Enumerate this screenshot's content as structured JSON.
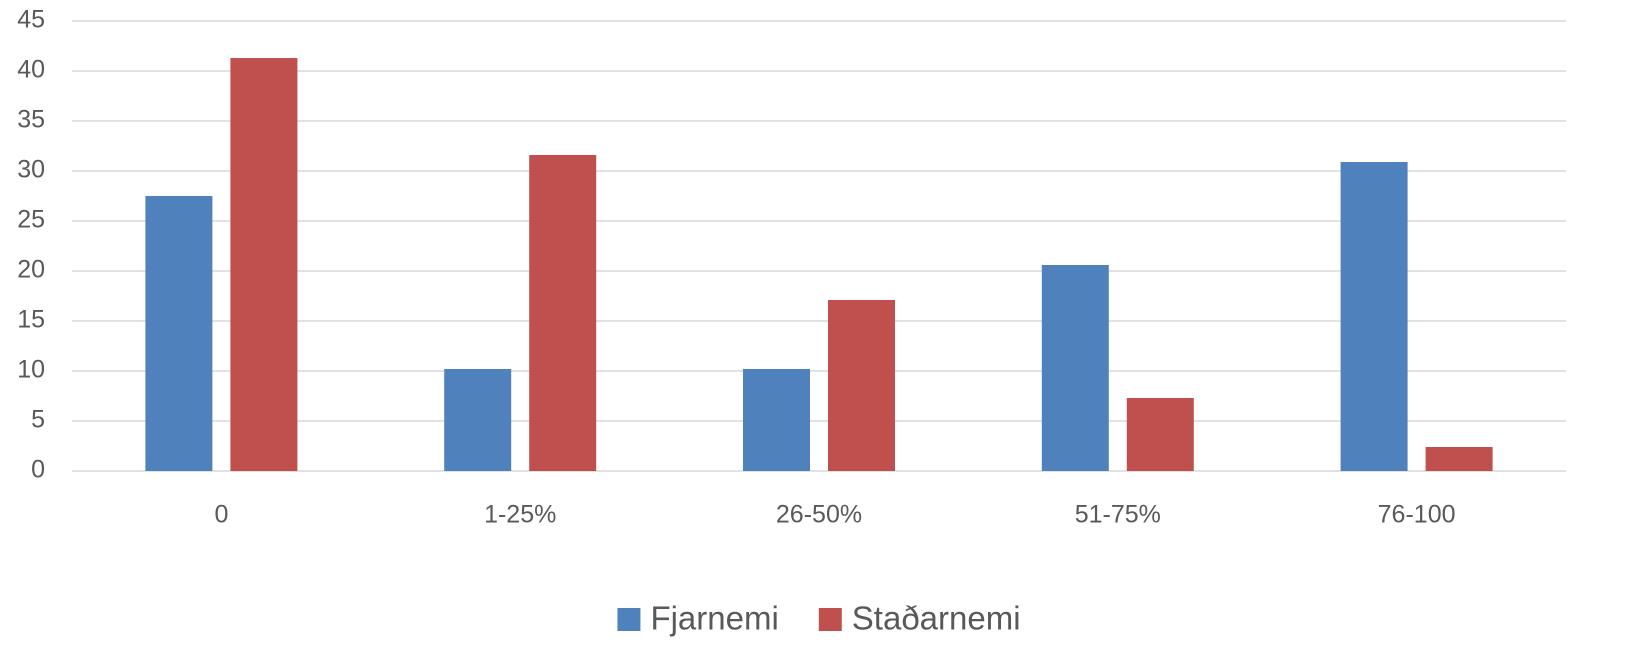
{
  "chart_data": {
    "type": "bar",
    "categories": [
      "0",
      "1-25%",
      "26-50%",
      "51-75%",
      "76-100"
    ],
    "series": [
      {
        "name": "Fjarnemi",
        "color": "#4f81bd",
        "values": [
          27.5,
          10.2,
          10.2,
          20.6,
          30.9
        ]
      },
      {
        "name": "Staðarnemi",
        "color": "#c0504d",
        "values": [
          41.3,
          31.6,
          17.1,
          7.3,
          2.4
        ]
      }
    ],
    "ylim": [
      0,
      45
    ],
    "yticks": [
      0,
      5,
      10,
      15,
      20,
      25,
      30,
      35,
      40,
      45
    ],
    "grid": true,
    "legend": "bottom"
  }
}
